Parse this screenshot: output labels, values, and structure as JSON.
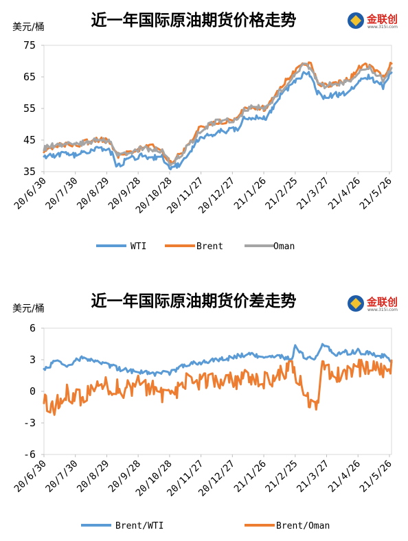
{
  "logo": {
    "name": "金联创",
    "site": "www.315i.com"
  },
  "colors": {
    "wti": "#5B9BD5",
    "brent": "#ED7D31",
    "oman": "#A5A5A5",
    "spread_bw": "#5B9BD5",
    "spread_bo": "#ED7D31"
  },
  "chart_data": [
    {
      "type": "line",
      "title": "近一年国际原油期货价格走势",
      "ylabel": "美元/桶",
      "ylim": [
        35,
        75
      ],
      "yticks": [
        "75",
        "65",
        "55",
        "45",
        "35"
      ],
      "x_tick_labels": [
        "20/6/30",
        "20/7/30",
        "20/8/29",
        "20/9/28",
        "20/10/28",
        "20/11/27",
        "20/12/27",
        "21/1/26",
        "21/2/25",
        "21/3/27",
        "21/4/26",
        "21/5/26"
      ],
      "x_range": [
        "2020-06-30",
        "2021-05-28"
      ],
      "legend_position": "bottom",
      "anchor_dates": [
        "2020-06-30",
        "2020-07-15",
        "2020-07-31",
        "2020-08-15",
        "2020-08-31",
        "2020-09-08",
        "2020-09-15",
        "2020-09-30",
        "2020-10-12",
        "2020-10-20",
        "2020-10-30",
        "2020-11-06",
        "2020-11-16",
        "2020-11-25",
        "2020-12-04",
        "2020-12-15",
        "2020-12-31",
        "2021-01-08",
        "2021-01-15",
        "2021-01-29",
        "2021-02-10",
        "2021-02-24",
        "2021-03-05",
        "2021-03-12",
        "2021-03-18",
        "2021-03-23",
        "2021-03-31",
        "2021-04-12",
        "2021-04-21",
        "2021-04-29",
        "2021-05-07",
        "2021-05-13",
        "2021-05-20",
        "2021-05-28"
      ],
      "series": [
        {
          "name": "WTI",
          "color_key": "wti",
          "values": [
            39.3,
            40.5,
            40.3,
            42.0,
            42.6,
            36.8,
            38.3,
            40.2,
            39.5,
            40.0,
            35.8,
            37.3,
            41.3,
            45.7,
            46.3,
            47.6,
            48.4,
            52.2,
            52.4,
            52.2,
            58.7,
            63.2,
            66.1,
            65.6,
            60.0,
            58.8,
            59.2,
            59.7,
            61.4,
            65.0,
            64.9,
            63.8,
            62.0,
            66.3
          ]
        },
        {
          "name": "Brent",
          "color_key": "brent",
          "values": [
            41.2,
            43.7,
            43.5,
            44.8,
            45.3,
            39.8,
            40.5,
            42.3,
            42.9,
            42.1,
            37.5,
            40.1,
            43.8,
            48.6,
            49.3,
            50.8,
            51.8,
            55.9,
            55.1,
            55.0,
            61.5,
            67.0,
            69.4,
            68.9,
            63.3,
            62.3,
            62.7,
            63.3,
            65.3,
            68.6,
            68.3,
            67.0,
            65.1,
            69.6
          ]
        },
        {
          "name": "Oman",
          "color_key": "oman",
          "values": [
            42.5,
            43.6,
            43.8,
            44.6,
            44.8,
            40.5,
            41.0,
            42.0,
            42.3,
            41.8,
            37.2,
            39.8,
            43.6,
            47.3,
            49.7,
            51.2,
            51.5,
            54.6,
            55.2,
            55.5,
            60.2,
            65.3,
            68.5,
            68.1,
            64.0,
            62.0,
            62.5,
            63.2,
            64.5,
            66.8,
            67.7,
            66.3,
            64.3,
            67.4
          ]
        }
      ]
    },
    {
      "type": "line",
      "title": "近一年国际原油期货价差走势",
      "ylabel": "美元/桶",
      "ylim": [
        -6,
        6
      ],
      "yticks": [
        "6",
        "3",
        "0",
        "-3",
        "-6"
      ],
      "x_tick_labels": [
        "20/6/30",
        "20/7/30",
        "20/8/29",
        "20/9/28",
        "20/10/28",
        "20/11/27",
        "20/12/27",
        "21/1/26",
        "21/2/25",
        "21/3/27",
        "21/4/26",
        "21/5/26"
      ],
      "x_range": [
        "2020-06-30",
        "2021-05-28"
      ],
      "legend_position": "bottom",
      "anchor_dates": [
        "2020-06-30",
        "2020-07-10",
        "2020-07-22",
        "2020-08-05",
        "2020-08-20",
        "2020-09-01",
        "2020-09-15",
        "2020-09-28",
        "2020-10-12",
        "2020-10-28",
        "2020-11-10",
        "2020-11-27",
        "2020-12-10",
        "2020-12-27",
        "2021-01-08",
        "2021-01-26",
        "2021-02-10",
        "2021-02-22",
        "2021-02-25",
        "2021-03-05",
        "2021-03-17",
        "2021-03-23",
        "2021-04-05",
        "2021-04-26",
        "2021-05-10",
        "2021-05-26",
        "2021-05-28"
      ],
      "series": [
        {
          "name": "Brent/WTI",
          "color_key": "spread_bw",
          "values": [
            2.0,
            2.8,
            2.5,
            3.2,
            2.8,
            2.4,
            2.0,
            1.9,
            1.7,
            1.8,
            2.4,
            2.8,
            3.0,
            3.2,
            3.5,
            3.2,
            3.4,
            3.0,
            4.5,
            3.3,
            3.2,
            4.4,
            3.6,
            3.8,
            3.5,
            3.2,
            2.7
          ]
        },
        {
          "name": "Brent/Oman",
          "color_key": "spread_bo",
          "values": [
            -0.8,
            -1.5,
            -0.2,
            -0.5,
            1.0,
            0.5,
            0.2,
            0.6,
            0.2,
            -0.8,
            0.8,
            1.0,
            1.2,
            0.9,
            1.2,
            1.0,
            1.5,
            2.5,
            1.7,
            0.0,
            -2.0,
            2.0,
            1.5,
            2.2,
            2.3,
            1.5,
            2.1
          ]
        }
      ]
    }
  ]
}
